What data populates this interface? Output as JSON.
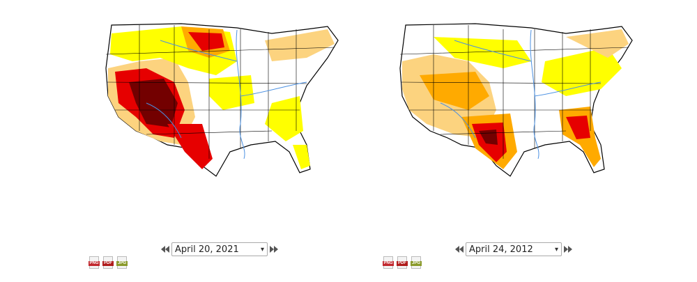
{
  "panels": [
    {
      "date": "April 20, 2021",
      "prev_icon": "double-left-arrow-icon",
      "next_icon": "double-right-arrow-icon",
      "downloads": [
        {
          "label": "PNG",
          "color": "#c1272d"
        },
        {
          "label": "PDF",
          "color": "#b01c1c"
        },
        {
          "label": "JPG",
          "color": "#8a9a2b"
        }
      ]
    },
    {
      "date": "April 24, 2012",
      "prev_icon": "double-left-arrow-icon",
      "next_icon": "double-right-arrow-icon",
      "downloads": [
        {
          "label": "PNG",
          "color": "#c1272d"
        },
        {
          "label": "PDF",
          "color": "#b01c1c"
        },
        {
          "label": "JPG",
          "color": "#8a9a2b"
        }
      ]
    }
  ],
  "palette": {
    "d0": "#ffff00",
    "d1": "#fcd37f",
    "d2": "#ffaa00",
    "d3": "#e60000",
    "d4": "#730000",
    "rivers": "#4a90e2",
    "borders": "#000000"
  }
}
